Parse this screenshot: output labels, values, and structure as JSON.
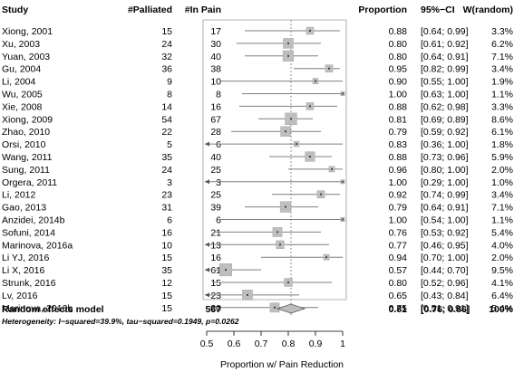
{
  "chart_data": {
    "type": "forest",
    "headers": {
      "study": "Study",
      "palliated": "#Palliated",
      "in_pain": "#In Pain",
      "proportion": "Proportion",
      "ci": "95%−CI",
      "weight": "W(random)"
    },
    "studies": [
      {
        "study": "Xiong, 2001",
        "palliated": "15",
        "in_pain": "17",
        "proportion": "0.88",
        "ci": "[0.64; 0.99]",
        "weight": "3.3%",
        "p": 0.88,
        "lo": 0.64,
        "hi": 0.99,
        "w": 3.3
      },
      {
        "study": "Xu, 2003",
        "palliated": "24",
        "in_pain": "30",
        "proportion": "0.80",
        "ci": "[0.61; 0.92]",
        "weight": "6.2%",
        "p": 0.8,
        "lo": 0.61,
        "hi": 0.92,
        "w": 6.2
      },
      {
        "study": "Yuan, 2003",
        "palliated": "32",
        "in_pain": "40",
        "proportion": "0.80",
        "ci": "[0.64; 0.91]",
        "weight": "7.1%",
        "p": 0.8,
        "lo": 0.64,
        "hi": 0.91,
        "w": 7.1
      },
      {
        "study": "Gu, 2004",
        "palliated": "36",
        "in_pain": "38",
        "proportion": "0.95",
        "ci": "[0.82; 0.99]",
        "weight": "3.4%",
        "p": 0.95,
        "lo": 0.82,
        "hi": 0.99,
        "w": 3.4
      },
      {
        "study": "Li, 2004",
        "palliated": "9",
        "in_pain": "10",
        "proportion": "0.90",
        "ci": "[0.55; 1.00]",
        "weight": "1.9%",
        "p": 0.9,
        "lo": 0.55,
        "hi": 1.0,
        "w": 1.9
      },
      {
        "study": "Wu, 2005",
        "palliated": "8",
        "in_pain": "8",
        "proportion": "1.00",
        "ci": "[0.63; 1.00]",
        "weight": "1.1%",
        "p": 1.0,
        "lo": 0.63,
        "hi": 1.0,
        "w": 1.1
      },
      {
        "study": "Xie, 2008",
        "palliated": "14",
        "in_pain": "16",
        "proportion": "0.88",
        "ci": "[0.62; 0.98]",
        "weight": "3.3%",
        "p": 0.88,
        "lo": 0.62,
        "hi": 0.98,
        "w": 3.3
      },
      {
        "study": "Xiong, 2009",
        "palliated": "54",
        "in_pain": "67",
        "proportion": "0.81",
        "ci": "[0.69; 0.89]",
        "weight": "8.6%",
        "p": 0.81,
        "lo": 0.69,
        "hi": 0.89,
        "w": 8.6
      },
      {
        "study": "Zhao, 2010",
        "palliated": "22",
        "in_pain": "28",
        "proportion": "0.79",
        "ci": "[0.59; 0.92]",
        "weight": "6.1%",
        "p": 0.79,
        "lo": 0.59,
        "hi": 0.92,
        "w": 6.1
      },
      {
        "study": "Orsi, 2010",
        "palliated": "5",
        "in_pain": "6",
        "proportion": "0.83",
        "ci": "[0.36; 1.00]",
        "weight": "1.8%",
        "p": 0.83,
        "lo": 0.36,
        "hi": 1.0,
        "w": 1.8
      },
      {
        "study": "Wang, 2011",
        "palliated": "35",
        "in_pain": "40",
        "proportion": "0.88",
        "ci": "[0.73; 0.96]",
        "weight": "5.9%",
        "p": 0.88,
        "lo": 0.73,
        "hi": 0.96,
        "w": 5.9
      },
      {
        "study": "Sung, 2011",
        "palliated": "24",
        "in_pain": "25",
        "proportion": "0.96",
        "ci": "[0.80; 1.00]",
        "weight": "2.0%",
        "p": 0.96,
        "lo": 0.8,
        "hi": 1.0,
        "w": 2.0
      },
      {
        "study": "Orgera, 2011",
        "palliated": "3",
        "in_pain": "3",
        "proportion": "1.00",
        "ci": "[0.29; 1.00]",
        "weight": "1.0%",
        "p": 1.0,
        "lo": 0.29,
        "hi": 1.0,
        "w": 1.0
      },
      {
        "study": "Li, 2012",
        "palliated": "23",
        "in_pain": "25",
        "proportion": "0.92",
        "ci": "[0.74; 0.99]",
        "weight": "3.4%",
        "p": 0.92,
        "lo": 0.74,
        "hi": 0.99,
        "w": 3.4
      },
      {
        "study": "Gao, 2013",
        "palliated": "31",
        "in_pain": "39",
        "proportion": "0.79",
        "ci": "[0.64; 0.91]",
        "weight": "7.1%",
        "p": 0.79,
        "lo": 0.64,
        "hi": 0.91,
        "w": 7.1
      },
      {
        "study": "Anzidei, 2014b",
        "palliated": "6",
        "in_pain": "6",
        "proportion": "1.00",
        "ci": "[0.54; 1.00]",
        "weight": "1.1%",
        "p": 1.0,
        "lo": 0.54,
        "hi": 1.0,
        "w": 1.1
      },
      {
        "study": "Sofuni, 2014",
        "palliated": "16",
        "in_pain": "21",
        "proportion": "0.76",
        "ci": "[0.53; 0.92]",
        "weight": "5.4%",
        "p": 0.76,
        "lo": 0.53,
        "hi": 0.92,
        "w": 5.4
      },
      {
        "study": "Marinova, 2016a",
        "palliated": "10",
        "in_pain": "13",
        "proportion": "0.77",
        "ci": "[0.46; 0.95]",
        "weight": "4.0%",
        "p": 0.77,
        "lo": 0.46,
        "hi": 0.95,
        "w": 4.0
      },
      {
        "study": "Li YJ, 2016",
        "palliated": "15",
        "in_pain": "16",
        "proportion": "0.94",
        "ci": "[0.70; 1.00]",
        "weight": "2.0%",
        "p": 0.94,
        "lo": 0.7,
        "hi": 1.0,
        "w": 2.0
      },
      {
        "study": "Li X, 2016",
        "palliated": "35",
        "in_pain": "61",
        "proportion": "0.57",
        "ci": "[0.44; 0.70]",
        "weight": "9.5%",
        "p": 0.57,
        "lo": 0.44,
        "hi": 0.7,
        "w": 9.5
      },
      {
        "study": "Strunk, 2016",
        "palliated": "12",
        "in_pain": "15",
        "proportion": "0.80",
        "ci": "[0.52; 0.96]",
        "weight": "4.1%",
        "p": 0.8,
        "lo": 0.52,
        "hi": 0.96,
        "w": 4.1
      },
      {
        "study": "Lv, 2016",
        "palliated": "15",
        "in_pain": "23",
        "proportion": "0.65",
        "ci": "[0.43; 0.84]",
        "weight": "6.4%",
        "p": 0.65,
        "lo": 0.43,
        "hi": 0.84,
        "w": 6.4
      },
      {
        "study": "Marinova, 2016b",
        "palliated": "15",
        "in_pain": "20",
        "proportion": "0.75",
        "ci": "[0.51; 0.91]",
        "weight": "5.4%",
        "p": 0.75,
        "lo": 0.51,
        "hi": 0.91,
        "w": 5.4
      }
    ],
    "summary": {
      "label": "Random effects model",
      "in_pain": "567",
      "proportion": "0.81",
      "ci": "[0.76; 0.86]",
      "weight": "100%",
      "p": 0.81,
      "lo": 0.76,
      "hi": 0.86
    },
    "heterogeneity": "Heterogeneity: I−squared=39.9%, tau−squared=0.1949, p=0.0262",
    "xlim": [
      0.5,
      1
    ],
    "xticks": [
      {
        "value": 0.5,
        "label": "0.5"
      },
      {
        "value": 0.6,
        "label": "0.6"
      },
      {
        "value": 0.7,
        "label": "0.7"
      },
      {
        "value": 0.8,
        "label": "0.8"
      },
      {
        "value": 0.9,
        "label": "0.9"
      },
      {
        "value": 1.0,
        "label": "1"
      }
    ],
    "xlabel": "Proportion w/ Pain Reduction",
    "reference_line": 0.81,
    "colors": {
      "box": "#bebebe",
      "line": "#7f7f7f",
      "diamond": "#bebebe",
      "text": "#000000"
    }
  }
}
